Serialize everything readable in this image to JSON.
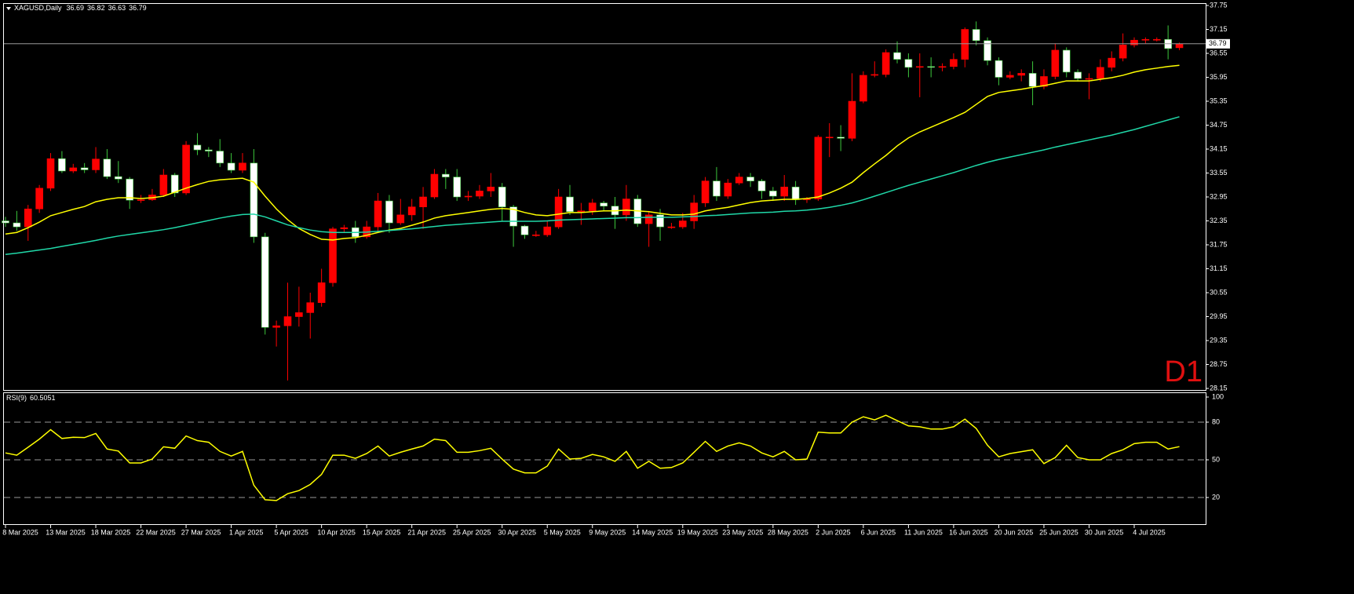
{
  "chart_data": {
    "type": "candlestick",
    "title": "XAGUSD,Daily",
    "categories": [
      "8 Mar 2025",
      null,
      null,
      null,
      "13 Mar 2025",
      null,
      null,
      null,
      "18 Mar 2025",
      null,
      null,
      null,
      "22 Mar 2025",
      null,
      null,
      null,
      "27 Mar 2025",
      null,
      null,
      null,
      "1 Apr 2025",
      null,
      null,
      null,
      "5 Apr 2025",
      null,
      null,
      null,
      "10 Apr 2025",
      null,
      null,
      null,
      "15 Apr 2025",
      null,
      null,
      null,
      "21 Apr 2025",
      null,
      null,
      null,
      "25 Apr 2025",
      null,
      null,
      null,
      "30 Apr 2025",
      null,
      null,
      null,
      "5 May 2025",
      null,
      null,
      null,
      "9 May 2025",
      null,
      null,
      null,
      "14 May 2025",
      null,
      null,
      null,
      "19 May 2025",
      null,
      null,
      null,
      "23 May 2025",
      null,
      null,
      null,
      "28 May 2025",
      null,
      null,
      null,
      "2 Jun 2025",
      null,
      null,
      null,
      "6 Jun 2025",
      null,
      null,
      null,
      "11 Jun 2025",
      null,
      null,
      null,
      "16 Jun 2025",
      null,
      null,
      null,
      "20 Jun 2025",
      null,
      null,
      null,
      "25 Jun 2025",
      null,
      null,
      null,
      "30 Jun 2025",
      null,
      null,
      null,
      "4 Jul 2025",
      null,
      null,
      null,
      null
    ],
    "open": [
      32.35,
      32.3,
      32.2,
      32.65,
      33.17,
      33.91,
      33.6,
      33.68,
      33.63,
      33.9,
      33.46,
      33.4,
      32.87,
      32.88,
      33.0,
      33.5,
      33.05,
      34.25,
      34.13,
      34.1,
      33.8,
      33.62,
      33.8,
      31.95,
      29.68,
      29.72,
      29.95,
      30.05,
      30.3,
      30.8,
      32.15,
      32.18,
      31.95,
      32.2,
      32.85,
      32.3,
      32.5,
      32.7,
      32.95,
      33.52,
      33.45,
      32.95,
      32.97,
      33.1,
      33.2,
      32.7,
      32.22,
      32.0,
      32.0,
      32.2,
      32.95,
      32.58,
      32.6,
      32.8,
      32.72,
      32.5,
      32.9,
      32.28,
      32.5,
      32.2,
      32.2,
      32.35,
      32.8,
      33.35,
      32.97,
      33.3,
      33.45,
      33.35,
      33.1,
      32.97,
      33.2,
      32.88,
      32.9,
      34.45,
      34.45,
      34.42,
      35.35,
      36.0,
      36.02,
      36.57,
      36.4,
      36.2,
      36.22,
      36.2,
      36.22,
      36.4,
      37.15,
      36.87,
      36.37,
      35.95,
      36.0,
      36.05,
      35.72,
      35.97,
      36.63,
      36.08,
      35.92,
      35.92,
      36.2,
      36.43,
      36.76,
      36.88,
      36.9,
      36.9,
      36.69
    ],
    "high": [
      32.45,
      32.6,
      32.75,
      33.25,
      34.05,
      34.1,
      33.78,
      33.8,
      34.2,
      34.15,
      33.85,
      33.45,
      33.0,
      33.15,
      33.65,
      33.55,
      34.35,
      34.55,
      34.2,
      34.4,
      34.05,
      34.05,
      34.15,
      32.05,
      29.85,
      30.8,
      30.7,
      30.55,
      31.15,
      32.2,
      32.25,
      32.35,
      32.35,
      33.05,
      33.0,
      32.9,
      32.9,
      33.2,
      33.65,
      33.65,
      33.65,
      33.1,
      33.25,
      33.55,
      33.3,
      32.75,
      32.25,
      32.1,
      32.35,
      33.15,
      33.25,
      32.8,
      32.9,
      32.85,
      32.95,
      33.25,
      33.0,
      32.6,
      32.65,
      32.3,
      32.55,
      33.0,
      33.45,
      33.7,
      33.4,
      33.55,
      33.55,
      33.4,
      33.2,
      33.5,
      33.35,
      32.95,
      34.5,
      34.8,
      34.75,
      36.05,
      36.1,
      36.35,
      36.65,
      36.85,
      36.55,
      36.55,
      36.45,
      36.3,
      36.55,
      37.2,
      37.35,
      36.95,
      36.45,
      36.1,
      36.15,
      36.35,
      36.15,
      36.8,
      36.7,
      36.15,
      36.05,
      36.4,
      36.6,
      37.05,
      36.95,
      36.95,
      36.95,
      37.25,
      36.82
    ],
    "low": [
      32.2,
      32.1,
      31.85,
      32.55,
      33.1,
      33.55,
      33.55,
      33.55,
      33.55,
      33.4,
      33.3,
      32.65,
      32.8,
      32.85,
      32.95,
      32.95,
      33.0,
      34.0,
      33.95,
      33.7,
      33.55,
      33.55,
      31.8,
      29.5,
      29.2,
      28.35,
      29.7,
      29.4,
      30.2,
      30.7,
      32.05,
      31.8,
      31.9,
      32.1,
      32.05,
      32.25,
      32.35,
      32.15,
      32.9,
      33.15,
      32.85,
      32.85,
      32.9,
      32.95,
      32.35,
      31.7,
      31.9,
      31.95,
      31.95,
      32.15,
      32.5,
      32.25,
      32.5,
      32.6,
      32.15,
      32.35,
      32.2,
      31.7,
      31.85,
      32.15,
      32.15,
      32.15,
      32.7,
      32.85,
      32.9,
      33.25,
      33.2,
      32.9,
      32.85,
      32.85,
      32.75,
      32.8,
      32.85,
      33.95,
      34.1,
      34.35,
      35.3,
      35.95,
      35.95,
      36.3,
      35.95,
      35.45,
      35.95,
      36.1,
      36.15,
      36.2,
      36.75,
      36.25,
      35.75,
      35.9,
      35.85,
      35.25,
      35.65,
      35.9,
      35.95,
      35.85,
      35.4,
      35.85,
      36.1,
      36.35,
      36.7,
      36.8,
      36.85,
      36.4,
      36.63
    ],
    "close": [
      32.3,
      32.2,
      32.65,
      33.17,
      33.91,
      33.6,
      33.68,
      33.63,
      33.9,
      33.46,
      33.4,
      32.87,
      32.88,
      33.0,
      33.5,
      33.05,
      34.25,
      34.13,
      34.1,
      33.8,
      33.62,
      33.8,
      31.95,
      29.68,
      29.72,
      29.95,
      30.05,
      30.3,
      30.8,
      32.15,
      32.18,
      31.95,
      32.2,
      32.85,
      32.3,
      32.5,
      32.7,
      32.95,
      33.52,
      33.45,
      32.95,
      32.97,
      33.1,
      33.2,
      32.7,
      32.22,
      32.0,
      32.0,
      32.2,
      32.95,
      32.58,
      32.6,
      32.8,
      32.72,
      32.5,
      32.9,
      32.28,
      32.5,
      32.2,
      32.2,
      32.35,
      32.8,
      33.35,
      32.97,
      33.3,
      33.45,
      33.35,
      33.1,
      32.97,
      33.2,
      32.88,
      32.9,
      34.45,
      34.45,
      34.42,
      35.35,
      36.0,
      36.02,
      36.57,
      36.4,
      36.2,
      36.22,
      36.2,
      36.22,
      36.4,
      37.15,
      36.87,
      36.37,
      35.95,
      36.0,
      36.05,
      35.72,
      35.97,
      36.63,
      36.08,
      35.92,
      35.92,
      36.2,
      36.43,
      36.76,
      36.88,
      36.9,
      36.9,
      36.67,
      36.79
    ],
    "up_color": "#ff0000",
    "down_color": "#ffffff",
    "down_wick_color": "#3cc83c",
    "ylim": [
      28.15,
      37.75
    ],
    "yticks": [
      37.75,
      37.15,
      36.55,
      35.95,
      35.35,
      34.75,
      34.15,
      33.55,
      32.95,
      32.35,
      31.75,
      31.15,
      30.55,
      29.95,
      29.35,
      28.75,
      28.15
    ],
    "overlays": [
      {
        "color": "#ffff00",
        "values": [
          32.02,
          32.06,
          32.18,
          32.32,
          32.48,
          32.56,
          32.64,
          32.71,
          32.83,
          32.89,
          32.93,
          32.93,
          32.91,
          32.93,
          32.97,
          33.07,
          33.17,
          33.26,
          33.34,
          33.38,
          33.4,
          33.42,
          33.32,
          32.97,
          32.65,
          32.38,
          32.16,
          32.01,
          31.89,
          31.87,
          31.91,
          31.93,
          31.99,
          32.06,
          32.12,
          32.16,
          32.24,
          32.32,
          32.42,
          32.48,
          32.52,
          32.56,
          32.6,
          32.64,
          32.66,
          32.64,
          32.56,
          32.5,
          32.48,
          32.52,
          32.56,
          32.56,
          32.58,
          32.6,
          32.6,
          32.62,
          32.6,
          32.58,
          32.54,
          32.5,
          32.5,
          32.52,
          32.6,
          32.65,
          32.69,
          32.75,
          32.81,
          32.85,
          32.87,
          32.89,
          32.89,
          32.91,
          32.95,
          33.05,
          33.17,
          33.32,
          33.56,
          33.78,
          33.99,
          34.23,
          34.43,
          34.58,
          34.7,
          34.82,
          34.94,
          35.07,
          35.27,
          35.47,
          35.57,
          35.61,
          35.65,
          35.7,
          35.74,
          35.8,
          35.86,
          35.86,
          35.86,
          35.9,
          35.94,
          36.0,
          36.08,
          36.14,
          36.18,
          36.22,
          36.25
        ]
      },
      {
        "color": "#20d8a8",
        "values": [
          31.51,
          31.54,
          31.58,
          31.62,
          31.66,
          31.71,
          31.76,
          31.81,
          31.86,
          31.92,
          31.97,
          32.01,
          32.05,
          32.09,
          32.13,
          32.18,
          32.24,
          32.3,
          32.36,
          32.42,
          32.47,
          32.51,
          32.52,
          32.45,
          32.35,
          32.25,
          32.18,
          32.12,
          32.08,
          32.06,
          32.06,
          32.06,
          32.07,
          32.09,
          32.11,
          32.13,
          32.15,
          32.18,
          32.21,
          32.24,
          32.26,
          32.28,
          32.3,
          32.32,
          32.34,
          32.34,
          32.34,
          32.34,
          32.35,
          32.37,
          32.38,
          32.39,
          32.4,
          32.41,
          32.42,
          32.43,
          32.43,
          32.44,
          32.44,
          32.44,
          32.45,
          32.46,
          32.48,
          32.49,
          32.51,
          32.53,
          32.55,
          32.56,
          32.57,
          32.59,
          32.6,
          32.62,
          32.65,
          32.69,
          32.74,
          32.8,
          32.88,
          32.97,
          33.06,
          33.15,
          33.24,
          33.32,
          33.4,
          33.48,
          33.56,
          33.65,
          33.74,
          33.82,
          33.89,
          33.95,
          34.01,
          34.07,
          34.13,
          34.2,
          34.26,
          34.32,
          34.38,
          34.44,
          34.5,
          34.57,
          34.64,
          34.72,
          34.8,
          34.88,
          34.96
        ]
      }
    ],
    "timeframe": "D1",
    "timeframe_color": "#e01010",
    "indicator": {
      "type": "line",
      "label": "RSI(9)",
      "color": "#ffff00",
      "values": [
        55.5,
        53.7,
        60.0,
        66.5,
        74.0,
        67.0,
        68.0,
        67.7,
        71.0,
        58.6,
        57.0,
        47.5,
        47.5,
        50.6,
        60.4,
        59.2,
        69.0,
        65.3,
        64.0,
        56.7,
        53.0,
        56.7,
        29.8,
        18.2,
        17.6,
        23.0,
        25.5,
        30.4,
        38.4,
        53.7,
        53.7,
        51.2,
        55.0,
        61.0,
        53.0,
        56.0,
        58.6,
        61.0,
        66.5,
        65.3,
        56.0,
        56.0,
        57.3,
        59.2,
        50.6,
        42.6,
        39.6,
        39.6,
        45.0,
        58.6,
        50.6,
        51.2,
        54.3,
        52.4,
        48.8,
        56.7,
        43.3,
        48.8,
        43.3,
        43.9,
        47.5,
        56.0,
        64.7,
        56.7,
        61.0,
        63.5,
        61.0,
        55.5,
        52.4,
        56.7,
        50.0,
        50.6,
        72.0,
        71.4,
        71.4,
        80.0,
        84.3,
        81.8,
        85.5,
        81.2,
        77.0,
        76.3,
        74.5,
        74.5,
        76.3,
        82.4,
        75.0,
        61.6,
        52.4,
        55.0,
        56.5,
        58.0,
        47.0,
        51.8,
        61.6,
        51.8,
        50.0,
        50.0,
        55.0,
        58.0,
        62.9,
        64.0,
        64.0,
        58.6,
        60.5051
      ],
      "ylim": [
        0,
        100
      ],
      "yticks": [
        100,
        80,
        50,
        20
      ]
    }
  }
}
